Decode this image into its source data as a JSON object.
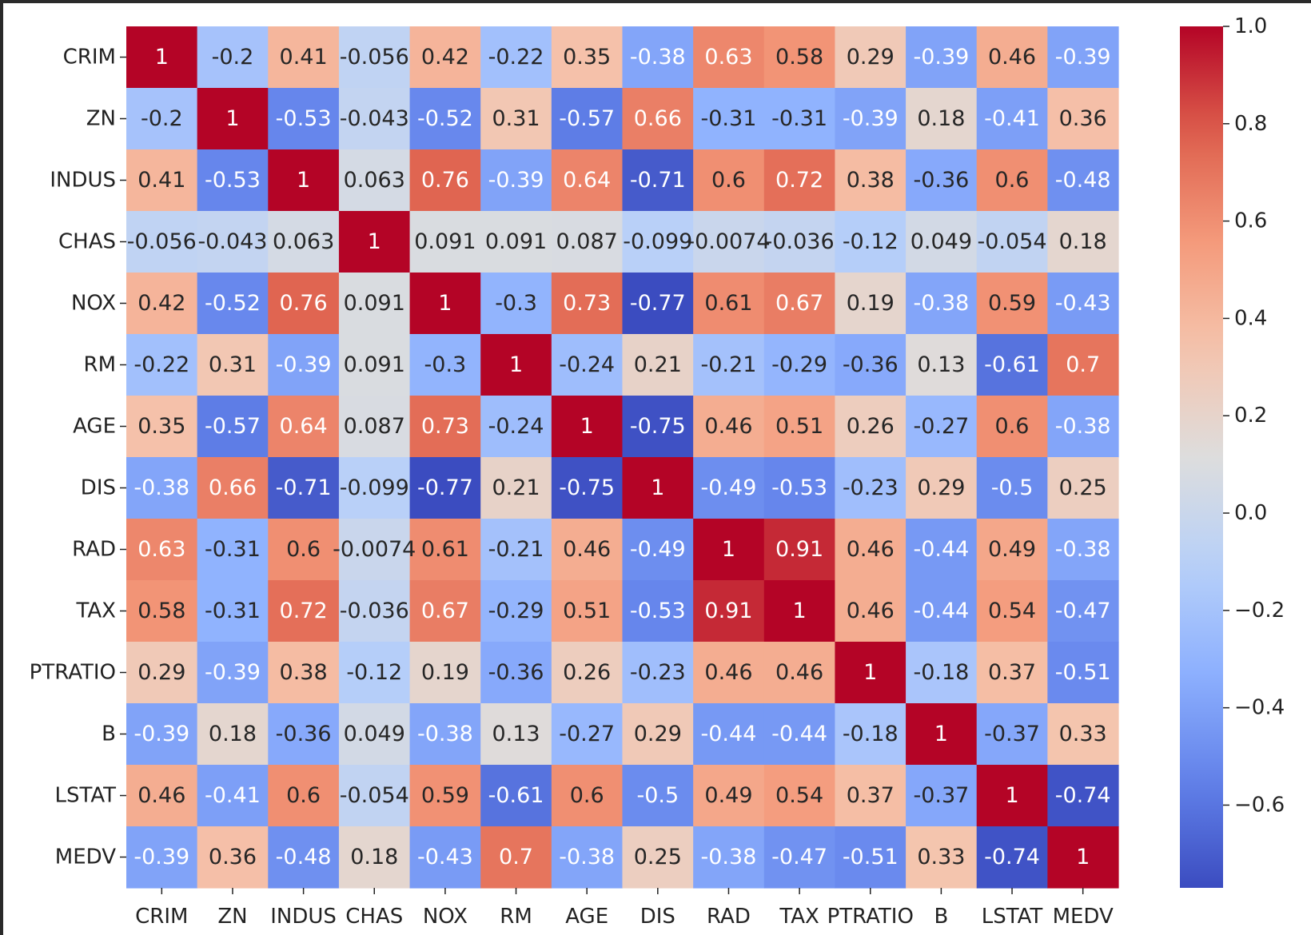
{
  "chart_data": {
    "type": "heatmap",
    "title": "",
    "xlabel": "",
    "ylabel": "",
    "colormap": "coolwarm",
    "vmin": -0.77,
    "vmax": 1.0,
    "grid": false,
    "legend": "colorbar-right",
    "labels": [
      "CRIM",
      "ZN",
      "INDUS",
      "CHAS",
      "NOX",
      "RM",
      "AGE",
      "DIS",
      "RAD",
      "TAX",
      "PTRATIO",
      "B",
      "LSTAT",
      "MEDV"
    ],
    "matrix": [
      [
        "1",
        "-0.2",
        "0.41",
        "-0.056",
        "0.42",
        "-0.22",
        "0.35",
        "-0.38",
        "0.63",
        "0.58",
        "0.29",
        "-0.39",
        "0.46",
        "-0.39"
      ],
      [
        "-0.2",
        "1",
        "-0.53",
        "-0.043",
        "-0.52",
        "0.31",
        "-0.57",
        "0.66",
        "-0.31",
        "-0.31",
        "-0.39",
        "0.18",
        "-0.41",
        "0.36"
      ],
      [
        "0.41",
        "-0.53",
        "1",
        "0.063",
        "0.76",
        "-0.39",
        "0.64",
        "-0.71",
        "0.6",
        "0.72",
        "0.38",
        "-0.36",
        "0.6",
        "-0.48"
      ],
      [
        "-0.056",
        "-0.043",
        "0.063",
        "1",
        "0.091",
        "0.091",
        "0.087",
        "-0.099",
        "-0.0074",
        "-0.036",
        "-0.12",
        "0.049",
        "-0.054",
        "0.18"
      ],
      [
        "0.42",
        "-0.52",
        "0.76",
        "0.091",
        "1",
        "-0.3",
        "0.73",
        "-0.77",
        "0.61",
        "0.67",
        "0.19",
        "-0.38",
        "0.59",
        "-0.43"
      ],
      [
        "-0.22",
        "0.31",
        "-0.39",
        "0.091",
        "-0.3",
        "1",
        "-0.24",
        "0.21",
        "-0.21",
        "-0.29",
        "-0.36",
        "0.13",
        "-0.61",
        "0.7"
      ],
      [
        "0.35",
        "-0.57",
        "0.64",
        "0.087",
        "0.73",
        "-0.24",
        "1",
        "-0.75",
        "0.46",
        "0.51",
        "0.26",
        "-0.27",
        "0.6",
        "-0.38"
      ],
      [
        "-0.38",
        "0.66",
        "-0.71",
        "-0.099",
        "-0.77",
        "0.21",
        "-0.75",
        "1",
        "-0.49",
        "-0.53",
        "-0.23",
        "0.29",
        "-0.5",
        "0.25"
      ],
      [
        "0.63",
        "-0.31",
        "0.6",
        "-0.0074",
        "0.61",
        "-0.21",
        "0.46",
        "-0.49",
        "1",
        "0.91",
        "0.46",
        "-0.44",
        "0.49",
        "-0.38"
      ],
      [
        "0.58",
        "-0.31",
        "0.72",
        "-0.036",
        "0.67",
        "-0.29",
        "0.51",
        "-0.53",
        "0.91",
        "1",
        "0.46",
        "-0.44",
        "0.54",
        "-0.47"
      ],
      [
        "0.29",
        "-0.39",
        "0.38",
        "-0.12",
        "0.19",
        "-0.36",
        "0.26",
        "-0.23",
        "0.46",
        "0.46",
        "1",
        "-0.18",
        "0.37",
        "-0.51"
      ],
      [
        "-0.39",
        "0.18",
        "-0.36",
        "0.049",
        "-0.38",
        "0.13",
        "-0.27",
        "0.29",
        "-0.44",
        "-0.44",
        "-0.18",
        "1",
        "-0.37",
        "0.33"
      ],
      [
        "0.46",
        "-0.41",
        "0.6",
        "-0.054",
        "0.59",
        "-0.61",
        "0.6",
        "-0.5",
        "0.49",
        "0.54",
        "0.37",
        "-0.37",
        "1",
        "-0.74"
      ],
      [
        "-0.39",
        "0.36",
        "-0.48",
        "0.18",
        "-0.43",
        "0.7",
        "-0.38",
        "0.25",
        "-0.38",
        "-0.47",
        "-0.51",
        "0.33",
        "-0.74",
        "1"
      ]
    ],
    "colorbar": {
      "ticks": [
        1.0,
        0.8,
        0.6,
        0.4,
        0.2,
        0.0,
        -0.2,
        -0.4,
        -0.6
      ],
      "tick_labels": [
        "1.0",
        "0.8",
        "0.6",
        "0.4",
        "0.2",
        "0.0",
        "−0.2",
        "−0.4",
        "−0.6"
      ]
    }
  }
}
